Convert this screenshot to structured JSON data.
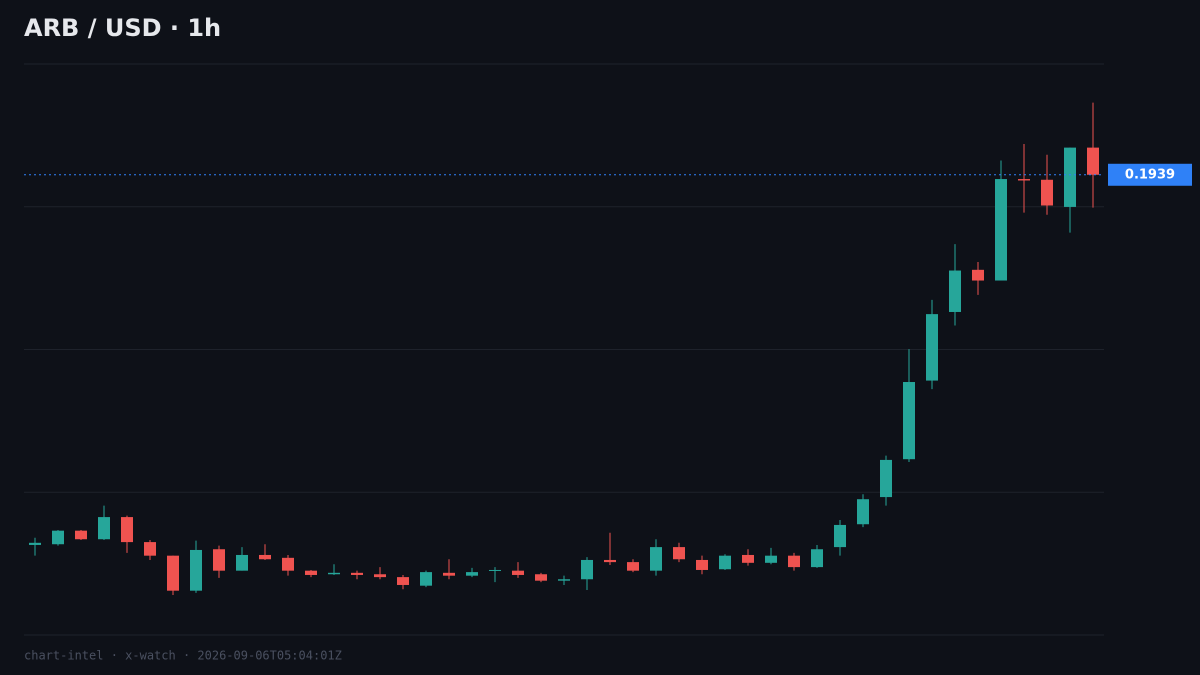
{
  "chart_data": {
    "type": "candlestick",
    "title": "ARB / USD  ·  1h",
    "footer": "chart-intel · x-watch · 2026-09-06T05:04:01Z",
    "up_color": "#26a69a",
    "down_color": "#ef5350",
    "price_color": "#2f81f7",
    "ylim": [
      0.1295,
      0.2094
    ],
    "grid": true,
    "open": [
      0.1421,
      0.1422,
      0.1441,
      0.1429,
      0.146,
      0.1425,
      0.1406,
      0.1357,
      0.1415,
      0.1385,
      0.1407,
      0.1403,
      0.1385,
      0.138,
      0.1382,
      0.138,
      0.1376,
      0.1364,
      0.1382,
      0.1378,
      0.1385,
      0.1385,
      0.138,
      0.1371,
      0.1373,
      0.14,
      0.1397,
      0.1385,
      0.1418,
      0.14,
      0.1387,
      0.1407,
      0.1396,
      0.1406,
      0.139,
      0.1418,
      0.145,
      0.1488,
      0.1541,
      0.1651,
      0.1747,
      0.1806,
      0.1791,
      0.1933,
      0.1932,
      0.1894,
      0.1977
    ],
    "high": [
      0.1431,
      0.1442,
      0.1442,
      0.1476,
      0.1462,
      0.1428,
      0.1406,
      0.1427,
      0.142,
      0.1418,
      0.1422,
      0.1407,
      0.1386,
      0.1394,
      0.1385,
      0.139,
      0.1379,
      0.1385,
      0.1401,
      0.1389,
      0.139,
      0.1397,
      0.1382,
      0.1378,
      0.1404,
      0.1438,
      0.1401,
      0.1429,
      0.1424,
      0.1406,
      0.1408,
      0.1415,
      0.1417,
      0.141,
      0.1421,
      0.1456,
      0.1492,
      0.1546,
      0.1695,
      0.1764,
      0.1842,
      0.1817,
      0.1959,
      0.1982,
      0.1967,
      0.1977,
      0.204
    ],
    "low": [
      0.1406,
      0.142,
      0.1428,
      0.1428,
      0.141,
      0.14,
      0.1351,
      0.1354,
      0.1375,
      0.1385,
      0.14,
      0.1378,
      0.1376,
      0.1379,
      0.1373,
      0.1373,
      0.1359,
      0.1362,
      0.1373,
      0.1376,
      0.1369,
      0.1375,
      0.1369,
      0.1365,
      0.1358,
      0.1393,
      0.1383,
      0.1378,
      0.1397,
      0.138,
      0.1386,
      0.1392,
      0.1394,
      0.1385,
      0.1389,
      0.1406,
      0.1446,
      0.1476,
      0.1537,
      0.1639,
      0.1728,
      0.1771,
      0.1791,
      0.1886,
      0.1883,
      0.1858,
      0.1893
    ],
    "close": [
      0.1424,
      0.1441,
      0.1429,
      0.146,
      0.1425,
      0.1406,
      0.1357,
      0.1414,
      0.1385,
      0.1407,
      0.1401,
      0.1385,
      0.1379,
      0.1382,
      0.1379,
      0.1376,
      0.1365,
      0.1383,
      0.1378,
      0.1383,
      0.1386,
      0.1379,
      0.1371,
      0.1373,
      0.14,
      0.1397,
      0.1385,
      0.1418,
      0.1401,
      0.1386,
      0.1406,
      0.1396,
      0.1406,
      0.139,
      0.1415,
      0.1449,
      0.1485,
      0.154,
      0.1649,
      0.1744,
      0.1805,
      0.1791,
      0.1933,
      0.1931,
      0.1896,
      0.1977,
      0.1939
    ]
  }
}
